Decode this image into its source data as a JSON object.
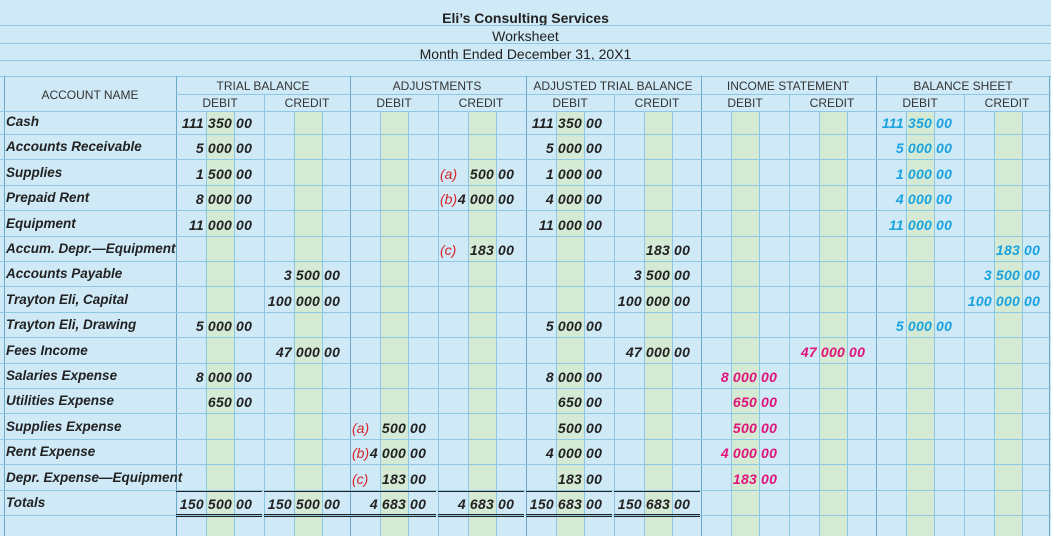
{
  "header": {
    "company": "Eli’s Consulting Services",
    "report": "Worksheet",
    "period": "Month Ended December 31, 20X1"
  },
  "columns": {
    "account_name": "ACCOUNT NAME",
    "groups": [
      "TRIAL BALANCE",
      "ADJUSTMENTS",
      "ADJUSTED TRIAL BALANCE",
      "INCOME STATEMENT",
      "BALANCE SHEET"
    ],
    "debit": "DEBIT",
    "credit": "CREDIT"
  },
  "colors": {
    "grid_line": "#8cc8e4",
    "background": "#cfe9f7",
    "green_band": "#d4ead5",
    "adjustment_label": "#d8232a",
    "income_statement": "#e0147a",
    "balance_sheet": "#1aa3e0",
    "text": "#222222"
  },
  "rows": [
    {
      "account": "Cash",
      "tb_debit": [
        "111",
        "350",
        "00"
      ],
      "atb_debit": [
        "111",
        "350",
        "00"
      ],
      "bs_debit": [
        "111",
        "350",
        "00"
      ]
    },
    {
      "account": "Accounts Receivable",
      "tb_debit": [
        "5",
        "000",
        "00"
      ],
      "atb_debit": [
        "5",
        "000",
        "00"
      ],
      "bs_debit": [
        "5",
        "000",
        "00"
      ]
    },
    {
      "account": "Supplies",
      "tb_debit": [
        "1",
        "500",
        "00"
      ],
      "adj_credit": [
        "",
        "500",
        "00"
      ],
      "adj_credit_label": "(a)",
      "atb_debit": [
        "1",
        "000",
        "00"
      ],
      "bs_debit": [
        "1",
        "000",
        "00"
      ]
    },
    {
      "account": "Prepaid Rent",
      "tb_debit": [
        "8",
        "000",
        "00"
      ],
      "adj_credit": [
        "4",
        "000",
        "00"
      ],
      "adj_credit_label": "(b)",
      "atb_debit": [
        "4",
        "000",
        "00"
      ],
      "bs_debit": [
        "4",
        "000",
        "00"
      ]
    },
    {
      "account": "Equipment",
      "tb_debit": [
        "11",
        "000",
        "00"
      ],
      "atb_debit": [
        "11",
        "000",
        "00"
      ],
      "bs_debit": [
        "11",
        "000",
        "00"
      ]
    },
    {
      "account": "Accum. Depr.—Equipment",
      "adj_credit": [
        "",
        "183",
        "00"
      ],
      "adj_credit_label": "(c)",
      "atb_credit": [
        "",
        "183",
        "00"
      ],
      "bs_credit": [
        "",
        "183",
        "00"
      ]
    },
    {
      "account": "Accounts Payable",
      "tb_credit": [
        "3",
        "500",
        "00"
      ],
      "atb_credit": [
        "3",
        "500",
        "00"
      ],
      "bs_credit": [
        "3",
        "500",
        "00"
      ]
    },
    {
      "account": "Trayton Eli, Capital",
      "tb_credit": [
        "100",
        "000",
        "00"
      ],
      "atb_credit": [
        "100",
        "000",
        "00"
      ],
      "bs_credit": [
        "100",
        "000",
        "00"
      ]
    },
    {
      "account": "Trayton Eli, Drawing",
      "tb_debit": [
        "5",
        "000",
        "00"
      ],
      "atb_debit": [
        "5",
        "000",
        "00"
      ],
      "bs_debit": [
        "5",
        "000",
        "00"
      ]
    },
    {
      "account": "Fees Income",
      "tb_credit": [
        "47",
        "000",
        "00"
      ],
      "atb_credit": [
        "47",
        "000",
        "00"
      ],
      "is_credit": [
        "47",
        "000",
        "00"
      ]
    },
    {
      "account": "Salaries Expense",
      "tb_debit": [
        "8",
        "000",
        "00"
      ],
      "atb_debit": [
        "8",
        "000",
        "00"
      ],
      "is_debit": [
        "8",
        "000",
        "00"
      ]
    },
    {
      "account": "Utilities Expense",
      "tb_debit": [
        "",
        "650",
        "00"
      ],
      "atb_debit": [
        "",
        "650",
        "00"
      ],
      "is_debit": [
        "",
        "650",
        "00"
      ]
    },
    {
      "account": "Supplies Expense",
      "adj_debit": [
        "",
        "500",
        "00"
      ],
      "adj_debit_label": "(a)",
      "atb_debit": [
        "",
        "500",
        "00"
      ],
      "is_debit": [
        "",
        "500",
        "00"
      ]
    },
    {
      "account": "Rent Expense",
      "adj_debit": [
        "4",
        "000",
        "00"
      ],
      "adj_debit_label": "(b)",
      "atb_debit": [
        "4",
        "000",
        "00"
      ],
      "is_debit": [
        "4",
        "000",
        "00"
      ]
    },
    {
      "account": "Depr. Expense—Equipment",
      "adj_debit": [
        "",
        "183",
        "00"
      ],
      "adj_debit_label": "(c)",
      "atb_debit": [
        "",
        "183",
        "00"
      ],
      "is_debit": [
        "",
        "183",
        "00"
      ]
    },
    {
      "account": "Totals",
      "tb_debit": [
        "150",
        "500",
        "00"
      ],
      "tb_credit": [
        "150",
        "500",
        "00"
      ],
      "adj_debit": [
        "4",
        "683",
        "00"
      ],
      "adj_credit": [
        "4",
        "683",
        "00"
      ],
      "atb_debit": [
        "150",
        "683",
        "00"
      ],
      "atb_credit": [
        "150",
        "683",
        "00"
      ]
    }
  ]
}
